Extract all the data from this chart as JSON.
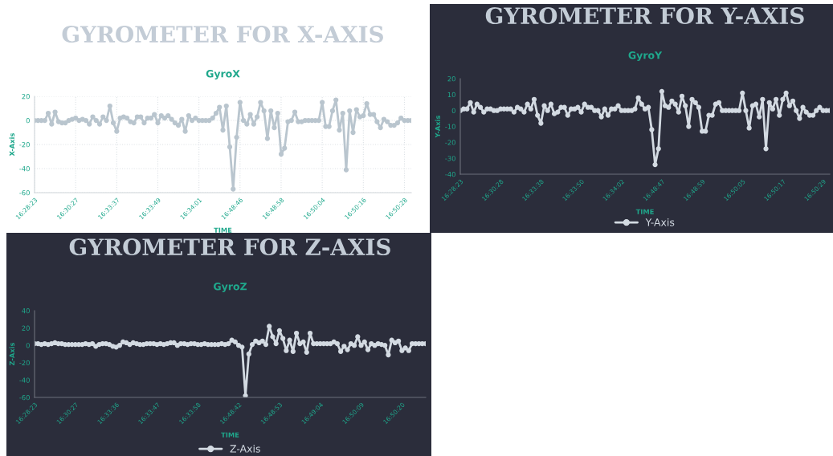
{
  "chart_data": [
    {
      "type": "line",
      "title": "GYROMETER FOR X-AXIS",
      "subtitle": "GyroX",
      "xlabel": "TIME",
      "ylabel": "X-Axis",
      "categories": [
        "16:28:23",
        null,
        null,
        null,
        null,
        null,
        null,
        null,
        null,
        null,
        null,
        null,
        "16:30:27",
        null,
        null,
        null,
        null,
        null,
        null,
        null,
        null,
        null,
        null,
        null,
        "16:33:37",
        null,
        null,
        null,
        null,
        null,
        null,
        null,
        null,
        null,
        null,
        null,
        "16:33:49",
        null,
        null,
        null,
        null,
        null,
        null,
        null,
        null,
        null,
        null,
        null,
        "16:34:01",
        null,
        null,
        null,
        null,
        null,
        null,
        null,
        null,
        null,
        null,
        null,
        "16:48:46",
        null,
        null,
        null,
        null,
        null,
        null,
        null,
        null,
        null,
        null,
        null,
        "16:48:58",
        null,
        null,
        null,
        null,
        null,
        null,
        null,
        null,
        null,
        null,
        null,
        "16:50:04",
        null,
        null,
        null,
        null,
        null,
        null,
        null,
        null,
        null,
        null,
        null,
        "16:50:16",
        null,
        null,
        null,
        null,
        null,
        null,
        null,
        null,
        null,
        null,
        null,
        "16:50:28",
        null,
        null
      ],
      "series": [
        {
          "color": "#b9c5ce",
          "values": [
            0,
            0,
            0,
            0,
            6,
            -3,
            7,
            -1,
            -2,
            -2,
            0,
            1,
            2,
            0,
            1,
            0,
            -3,
            3,
            0,
            -3,
            3,
            0,
            12,
            -2,
            -9,
            2,
            3,
            2,
            -1,
            -2,
            3,
            3,
            -2,
            2,
            2,
            5,
            -2,
            4,
            2,
            4,
            1,
            -2,
            -4,
            1,
            -9,
            4,
            0,
            2,
            0,
            0,
            0,
            0,
            2,
            6,
            11,
            -8,
            12,
            -22,
            -57,
            -14,
            15,
            0,
            -3,
            5,
            -3,
            3,
            15,
            8,
            -15,
            8,
            -6,
            6,
            -28,
            -23,
            -1,
            0,
            7,
            -1,
            -1,
            0,
            0,
            0,
            0,
            0,
            15,
            -5,
            -5,
            8,
            17,
            -8,
            6,
            -41,
            8,
            -10,
            9,
            3,
            4,
            14,
            5,
            5,
            -1,
            -6,
            1,
            -1,
            -4,
            -4,
            -2,
            2,
            0,
            0,
            0
          ]
        }
      ],
      "ylim": [
        -60,
        20
      ],
      "yticks": [
        -60,
        -40,
        -20,
        0,
        20
      ],
      "grid": true,
      "marker": "circle",
      "line_style": "solid"
    },
    {
      "type": "line",
      "title": "GYROMETER FOR Y-AXIS",
      "subtitle": "GyroY",
      "xlabel": "TIME",
      "ylabel": "Y-Axis",
      "categories": [
        "16:28:23",
        null,
        null,
        null,
        null,
        null,
        null,
        null,
        null,
        null,
        null,
        null,
        "16:30:28",
        null,
        null,
        null,
        null,
        null,
        null,
        null,
        null,
        null,
        null,
        null,
        "16:33:38",
        null,
        null,
        null,
        null,
        null,
        null,
        null,
        null,
        null,
        null,
        null,
        "16:33:50",
        null,
        null,
        null,
        null,
        null,
        null,
        null,
        null,
        null,
        null,
        null,
        "16:34:02",
        null,
        null,
        null,
        null,
        null,
        null,
        null,
        null,
        null,
        null,
        null,
        "16:48:47",
        null,
        null,
        null,
        null,
        null,
        null,
        null,
        null,
        null,
        null,
        null,
        "16:48:59",
        null,
        null,
        null,
        null,
        null,
        null,
        null,
        null,
        null,
        null,
        null,
        "16:50:05",
        null,
        null,
        null,
        null,
        null,
        null,
        null,
        null,
        null,
        null,
        null,
        "16:50:17",
        null,
        null,
        null,
        null,
        null,
        null,
        null,
        null,
        null,
        null,
        null,
        "16:50:29",
        null,
        null
      ],
      "series": [
        {
          "name": "Y-Axis",
          "color": "#d3dae2",
          "values": [
            0,
            1,
            1,
            5,
            -1,
            4,
            2,
            -1,
            1,
            1,
            0,
            0,
            1,
            1,
            1,
            1,
            -1,
            2,
            1,
            -1,
            4,
            1,
            7,
            -3,
            -8,
            3,
            0,
            4,
            -2,
            -1,
            2,
            2,
            -3,
            1,
            1,
            2,
            -1,
            4,
            2,
            2,
            0,
            0,
            -4,
            1,
            -3,
            1,
            1,
            3,
            0,
            0,
            0,
            0,
            1,
            8,
            4,
            1,
            2,
            -12,
            -34,
            -24,
            12,
            3,
            2,
            6,
            4,
            -1,
            9,
            3,
            -10,
            7,
            5,
            2,
            -13,
            -13,
            -3,
            -3,
            4,
            5,
            0,
            0,
            0,
            0,
            0,
            0,
            11,
            0,
            -11,
            3,
            4,
            -4,
            7,
            -24,
            5,
            1,
            7,
            -3,
            7,
            11,
            3,
            6,
            0,
            -5,
            2,
            -1,
            -3,
            -3,
            0,
            2,
            0,
            0,
            0
          ]
        }
      ],
      "ylim": [
        -40,
        20
      ],
      "yticks": [
        -40,
        -30,
        -20,
        -10,
        0,
        10,
        20
      ],
      "legend": "bottom",
      "marker": "circle",
      "line_style": "solid"
    },
    {
      "type": "line",
      "title": "GYROMETER FOR Z-AXIS",
      "subtitle": "GyroZ",
      "xlabel": "TIME",
      "ylabel": "Z-Axis",
      "categories": [
        "16:28:23",
        null,
        null,
        null,
        null,
        null,
        null,
        null,
        null,
        null,
        null,
        null,
        "16:30:27",
        null,
        null,
        null,
        null,
        null,
        null,
        null,
        null,
        null,
        null,
        null,
        "16:33:36",
        null,
        null,
        null,
        null,
        null,
        null,
        null,
        null,
        null,
        null,
        null,
        "16:33:47",
        null,
        null,
        null,
        null,
        null,
        null,
        null,
        null,
        null,
        null,
        null,
        "16:33:58",
        null,
        null,
        null,
        null,
        null,
        null,
        null,
        null,
        null,
        null,
        null,
        "16:48:42",
        null,
        null,
        null,
        null,
        null,
        null,
        null,
        null,
        null,
        null,
        null,
        "16:48:53",
        null,
        null,
        null,
        null,
        null,
        null,
        null,
        null,
        null,
        null,
        null,
        "16:49:04",
        null,
        null,
        null,
        null,
        null,
        null,
        null,
        null,
        null,
        null,
        null,
        "16:50:09",
        null,
        null,
        null,
        null,
        null,
        null,
        null,
        null,
        null,
        null,
        null,
        "16:50:20",
        null,
        null,
        null,
        null,
        null,
        null,
        null
      ],
      "series": [
        {
          "name": "Z-Axis",
          "color": "#d3dae2",
          "values": [
            2,
            2,
            1,
            2,
            1,
            2,
            3,
            2,
            2,
            1,
            1,
            1,
            1,
            1,
            1,
            2,
            1,
            2,
            -1,
            1,
            2,
            2,
            1,
            -1,
            -2,
            0,
            4,
            3,
            1,
            3,
            2,
            1,
            1,
            2,
            2,
            2,
            1,
            2,
            1,
            2,
            3,
            3,
            0,
            2,
            2,
            1,
            2,
            2,
            1,
            1,
            2,
            1,
            1,
            1,
            1,
            2,
            1,
            2,
            6,
            4,
            0,
            -2,
            -58,
            -10,
            1,
            5,
            3,
            5,
            1,
            22,
            10,
            2,
            17,
            8,
            -6,
            6,
            -7,
            14,
            2,
            4,
            -8,
            14,
            2,
            2,
            2,
            2,
            2,
            2,
            4,
            2,
            -7,
            -1,
            -5,
            2,
            0,
            10,
            0,
            4,
            -5,
            2,
            0,
            2,
            1,
            0,
            -11,
            6,
            3,
            5,
            -6,
            -3,
            -6,
            2,
            2,
            2,
            2,
            2
          ]
        }
      ],
      "ylim": [
        -60,
        40
      ],
      "yticks": [
        -60,
        -40,
        -20,
        0,
        20,
        40
      ],
      "legend": "bottom",
      "marker": "circle",
      "line_style": "solid"
    }
  ]
}
